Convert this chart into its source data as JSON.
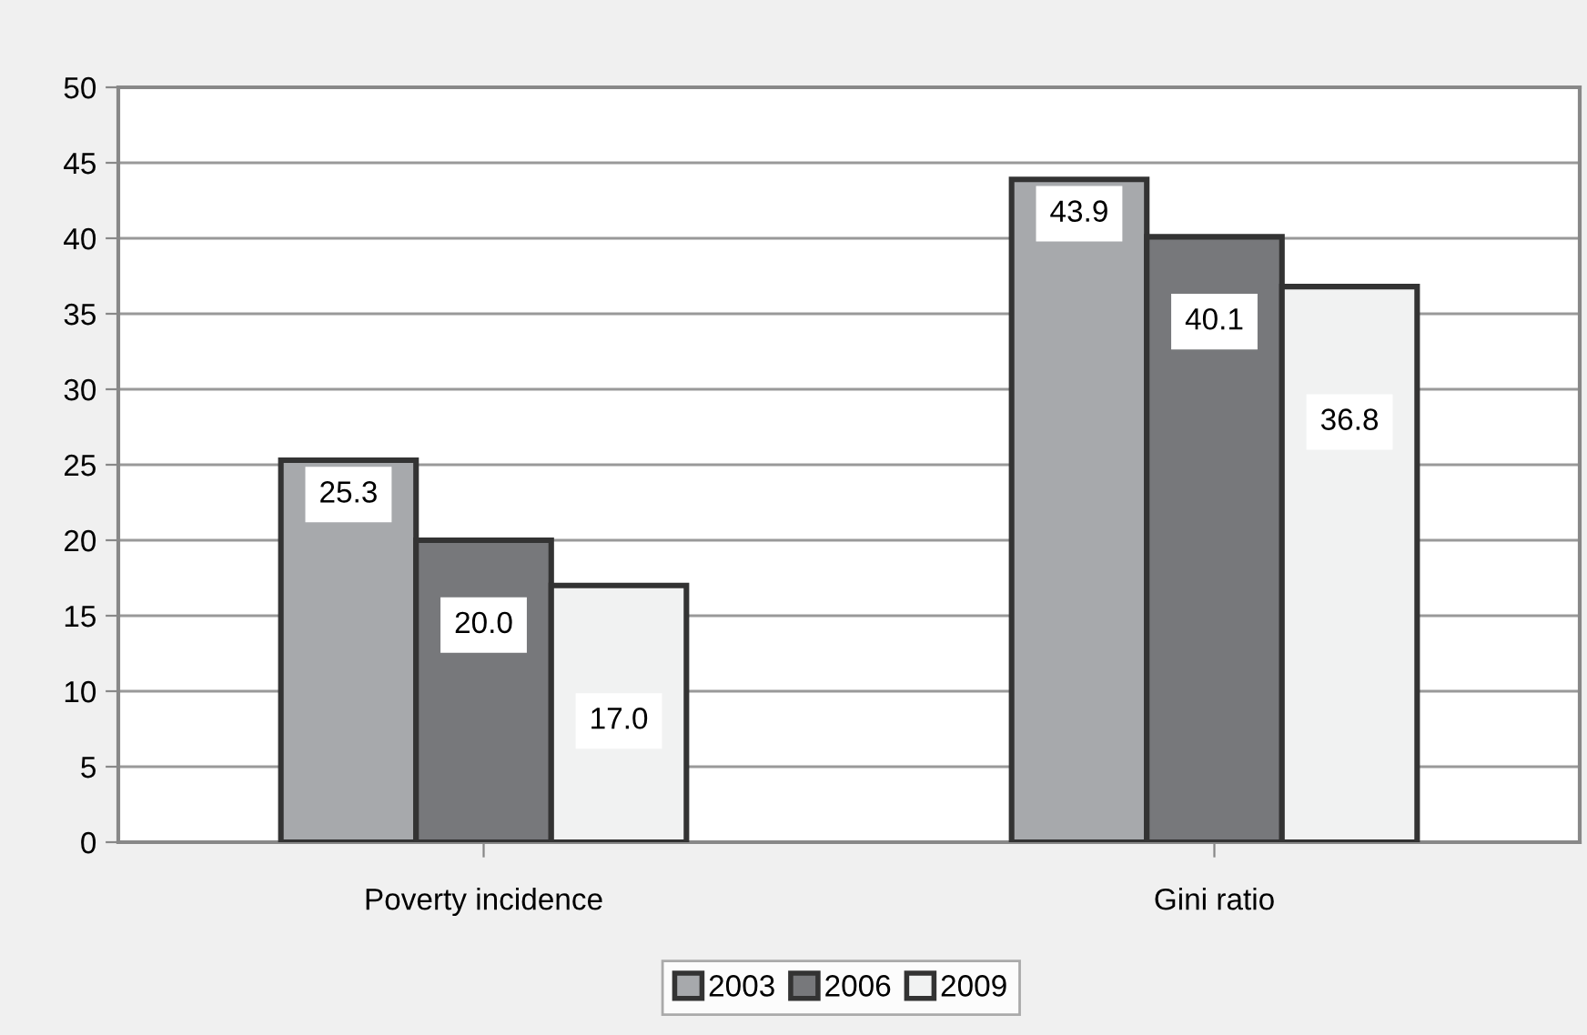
{
  "chart_data": {
    "type": "bar",
    "categories": [
      "Poverty incidence",
      "Gini ratio"
    ],
    "series": [
      {
        "name": "2003",
        "color": "#a7a9ac",
        "values": [
          25.3,
          43.9
        ],
        "value_labels": [
          "25.3",
          "43.9"
        ]
      },
      {
        "name": "2006",
        "color": "#77787b",
        "values": [
          20.0,
          40.1
        ],
        "value_labels": [
          "20.0",
          "40.1"
        ]
      },
      {
        "name": "2009",
        "color": "#f1f2f2",
        "values": [
          17.0,
          36.8
        ],
        "value_labels": [
          "17.0",
          "36.8"
        ]
      }
    ],
    "ylim": [
      0,
      50
    ],
    "yticks": [
      0,
      5,
      10,
      15,
      20,
      25,
      30,
      35,
      40,
      45,
      50
    ],
    "grid": "y",
    "legend": "bottom"
  }
}
